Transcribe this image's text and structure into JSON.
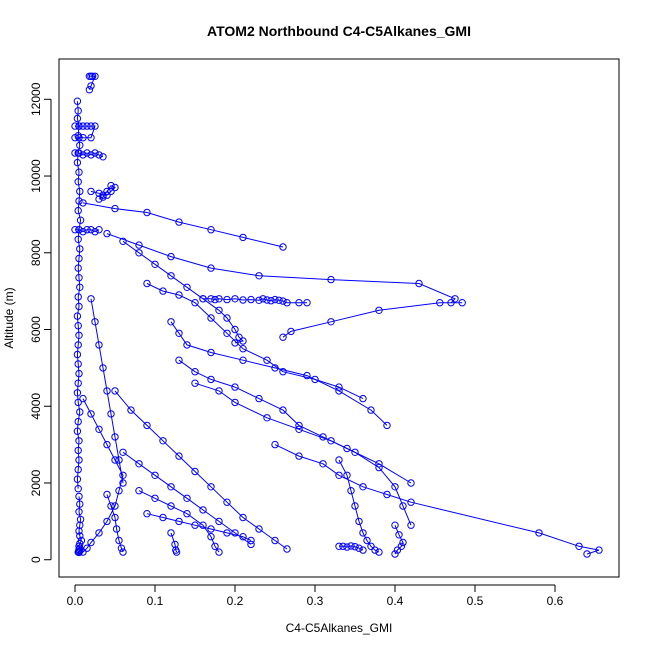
{
  "chart_data": {
    "type": "line",
    "title": "ATOM2 Northbound C4-C5Alkanes_GMI",
    "xlabel": "C4-C5Alkanes_GMI",
    "ylabel": "Altitude (m)",
    "xlim": [
      -0.02,
      0.68
    ],
    "ylim": [
      -450,
      13050
    ],
    "xticks": [
      0.0,
      0.1,
      0.2,
      0.3,
      0.4,
      0.5,
      0.6
    ],
    "xtick_labels": [
      "0.0",
      "0.1",
      "0.2",
      "0.3",
      "0.4",
      "0.5",
      "0.6"
    ],
    "yticks": [
      0,
      2000,
      4000,
      6000,
      8000,
      10000,
      12000
    ],
    "ytick_labels": [
      "0",
      "2000",
      "4000",
      "6000",
      "8000",
      "10000",
      "12000"
    ],
    "grid": false,
    "marker": "open-circle",
    "color": "#0000ff",
    "series": [
      {
        "x": [
          0.003,
          0.004,
          0.003,
          0.005,
          0.004,
          0.006,
          0.004,
          0.003,
          0.005,
          0.004,
          0.006,
          0.005,
          0.004,
          0.007,
          0.005,
          0.004,
          0.006,
          0.005,
          0.004,
          0.005,
          0.006,
          0.004,
          0.005,
          0.003,
          0.004,
          0.005,
          0.004,
          0.003,
          0.004,
          0.005,
          0.004,
          0.003,
          0.004,
          0.006,
          0.004,
          0.003,
          0.005,
          0.004,
          0.005,
          0.004,
          0.003,
          0.004
        ],
        "y": [
          11950,
          11700,
          11500,
          11300,
          11050,
          10800,
          10600,
          10350,
          10100,
          9850,
          9600,
          9350,
          9100,
          8850,
          8600,
          8350,
          8100,
          7850,
          7600,
          7350,
          7100,
          6850,
          6600,
          6350,
          6100,
          5850,
          5600,
          5350,
          5100,
          4850,
          4600,
          4350,
          4100,
          3850,
          3600,
          3350,
          3100,
          2850,
          2600,
          2350,
          2100,
          1850
        ]
      },
      {
        "x": [
          0.005,
          0.006,
          0.005,
          0.007,
          0.006,
          0.005,
          0.006,
          0.008,
          0.006,
          0.005,
          0.006,
          0.005,
          0.006,
          0.005,
          0.004,
          0.005
        ],
        "y": [
          1650,
          1450,
          1250,
          1050,
          900,
          750,
          620,
          500,
          420,
          350,
          300,
          260,
          230,
          210,
          200,
          190
        ]
      },
      {
        "x": [
          0.018,
          0.02,
          0.022,
          0.025,
          0.02,
          0.018
        ],
        "y": [
          12600,
          12600,
          12600,
          12600,
          12350,
          12250
        ]
      },
      {
        "x": [
          0.0,
          0.005,
          0.01,
          0.015,
          0.02,
          0.025,
          0.02,
          0.01,
          0.005,
          0.0
        ],
        "y": [
          11300,
          11300,
          11300,
          11300,
          11300,
          11300,
          11000,
          11000,
          11000,
          11000
        ]
      },
      {
        "x": [
          0.0,
          0.005,
          0.01,
          0.015,
          0.02,
          0.025,
          0.03,
          0.035
        ],
        "y": [
          10600,
          10600,
          10550,
          10600,
          10550,
          10600,
          10550,
          10500
        ]
      },
      {
        "x": [
          0.02,
          0.03,
          0.035,
          0.04,
          0.045,
          0.05,
          0.045,
          0.04,
          0.035,
          0.03
        ],
        "y": [
          9600,
          9550,
          9500,
          9500,
          9600,
          9700,
          9750,
          9600,
          9450,
          9400
        ]
      },
      {
        "x": [
          0.0,
          0.005,
          0.01,
          0.015,
          0.02,
          0.025,
          0.03
        ],
        "y": [
          8600,
          8600,
          8550,
          8600,
          8600,
          8550,
          8600
        ]
      },
      {
        "x": [
          0.01,
          0.05,
          0.09,
          0.13,
          0.17,
          0.21,
          0.26
        ],
        "y": [
          9300,
          9150,
          9050,
          8800,
          8600,
          8400,
          8150
        ]
      },
      {
        "x": [
          0.04,
          0.08,
          0.12,
          0.17,
          0.23,
          0.32,
          0.43,
          0.475,
          0.47
        ],
        "y": [
          8500,
          8200,
          7900,
          7600,
          7400,
          7300,
          7200,
          6800,
          6700
        ]
      },
      {
        "x": [
          0.484,
          0.456,
          0.38,
          0.32,
          0.27,
          0.26
        ],
        "y": [
          6700,
          6700,
          6500,
          6200,
          5950,
          5800
        ]
      },
      {
        "x": [
          0.16,
          0.17,
          0.175,
          0.18,
          0.19,
          0.2,
          0.21,
          0.22,
          0.23,
          0.235,
          0.24,
          0.245,
          0.25,
          0.255,
          0.26,
          0.265,
          0.28,
          0.29
        ],
        "y": [
          6800,
          6800,
          6780,
          6800,
          6780,
          6800,
          6770,
          6780,
          6760,
          6800,
          6770,
          6750,
          6780,
          6760,
          6740,
          6700,
          6700,
          6700
        ]
      },
      {
        "x": [
          0.06,
          0.08,
          0.1,
          0.12,
          0.14,
          0.16,
          0.18,
          0.19,
          0.2,
          0.205,
          0.21,
          0.2
        ],
        "y": [
          8300,
          8000,
          7700,
          7400,
          7100,
          6800,
          6500,
          6300,
          6000,
          5800,
          5700,
          5650
        ]
      },
      {
        "x": [
          0.09,
          0.11,
          0.13,
          0.15,
          0.17,
          0.19,
          0.21,
          0.24,
          0.26,
          0.3,
          0.33,
          0.36
        ],
        "y": [
          7200,
          7000,
          6900,
          6700,
          6300,
          5900,
          5500,
          5200,
          4900,
          4700,
          4500,
          4200
        ]
      },
      {
        "x": [
          0.12,
          0.13,
          0.14,
          0.17,
          0.21,
          0.25,
          0.29,
          0.33,
          0.37,
          0.39
        ],
        "y": [
          6200,
          5900,
          5600,
          5400,
          5200,
          5000,
          4800,
          4400,
          3900,
          3500
        ]
      },
      {
        "x": [
          0.13,
          0.15,
          0.17,
          0.2,
          0.23,
          0.26,
          0.28,
          0.31,
          0.34,
          0.38,
          0.42
        ],
        "y": [
          5200,
          4900,
          4700,
          4500,
          4200,
          3900,
          3500,
          3200,
          2900,
          2500,
          2000
        ]
      },
      {
        "x": [
          0.15,
          0.18,
          0.2,
          0.24,
          0.28,
          0.32,
          0.35,
          0.38,
          0.4,
          0.41,
          0.42
        ],
        "y": [
          4600,
          4400,
          4100,
          3700,
          3400,
          3100,
          2800,
          2400,
          1900,
          1400,
          900
        ]
      },
      {
        "x": [
          0.25,
          0.28,
          0.31,
          0.33,
          0.36,
          0.39,
          0.42,
          0.58,
          0.63,
          0.655,
          0.64
        ],
        "y": [
          3000,
          2700,
          2500,
          2200,
          1900,
          1700,
          1500,
          700,
          350,
          250,
          150
        ]
      },
      {
        "x": [
          0.33,
          0.34,
          0.345,
          0.35,
          0.355,
          0.36,
          0.365,
          0.37,
          0.375,
          0.38
        ],
        "y": [
          2600,
          2200,
          1800,
          1400,
          1000,
          700,
          500,
          350,
          250,
          200
        ]
      },
      {
        "x": [
          0.4,
          0.405,
          0.41,
          0.408,
          0.403,
          0.4
        ],
        "y": [
          900,
          650,
          450,
          350,
          250,
          150
        ]
      },
      {
        "x": [
          0.33,
          0.335,
          0.34,
          0.345,
          0.35,
          0.355,
          0.36
        ],
        "y": [
          350,
          350,
          330,
          360,
          340,
          300,
          250
        ]
      },
      {
        "x": [
          0.05,
          0.07,
          0.09,
          0.11,
          0.13,
          0.15,
          0.17,
          0.19,
          0.21,
          0.23,
          0.25,
          0.265
        ],
        "y": [
          4400,
          3900,
          3500,
          3100,
          2700,
          2300,
          1900,
          1500,
          1100,
          800,
          500,
          280
        ]
      },
      {
        "x": [
          0.06,
          0.08,
          0.1,
          0.12,
          0.14,
          0.16,
          0.18,
          0.2,
          0.22
        ],
        "y": [
          2800,
          2500,
          2200,
          1900,
          1600,
          1300,
          1000,
          700,
          400
        ]
      },
      {
        "x": [
          0.08,
          0.1,
          0.12,
          0.14,
          0.16,
          0.17,
          0.175,
          0.18
        ],
        "y": [
          1800,
          1600,
          1400,
          1200,
          900,
          600,
          350,
          200
        ]
      },
      {
        "x": [
          0.09,
          0.11,
          0.13,
          0.15,
          0.17,
          0.19,
          0.21,
          0.22
        ],
        "y": [
          1200,
          1100,
          1000,
          900,
          800,
          700,
          600,
          500
        ]
      },
      {
        "x": [
          0.12,
          0.125,
          0.126,
          0.127
        ],
        "y": [
          700,
          400,
          250,
          200
        ]
      },
      {
        "x": [
          0.01,
          0.02,
          0.03,
          0.04,
          0.05,
          0.06,
          0.055,
          0.05,
          0.04,
          0.03,
          0.02,
          0.015,
          0.01
        ],
        "y": [
          4200,
          3800,
          3400,
          3000,
          2600,
          2200,
          1800,
          1400,
          1000,
          700,
          450,
          300,
          200
        ]
      },
      {
        "x": [
          0.02,
          0.025,
          0.03,
          0.035,
          0.04,
          0.045,
          0.05,
          0.055,
          0.06
        ],
        "y": [
          6800,
          6200,
          5600,
          5000,
          4400,
          3800,
          3200,
          2600,
          2000
        ]
      },
      {
        "x": [
          0.04,
          0.045,
          0.05,
          0.052,
          0.055,
          0.058,
          0.06
        ],
        "y": [
          1700,
          1400,
          1100,
          800,
          500,
          300,
          200
        ]
      }
    ]
  }
}
